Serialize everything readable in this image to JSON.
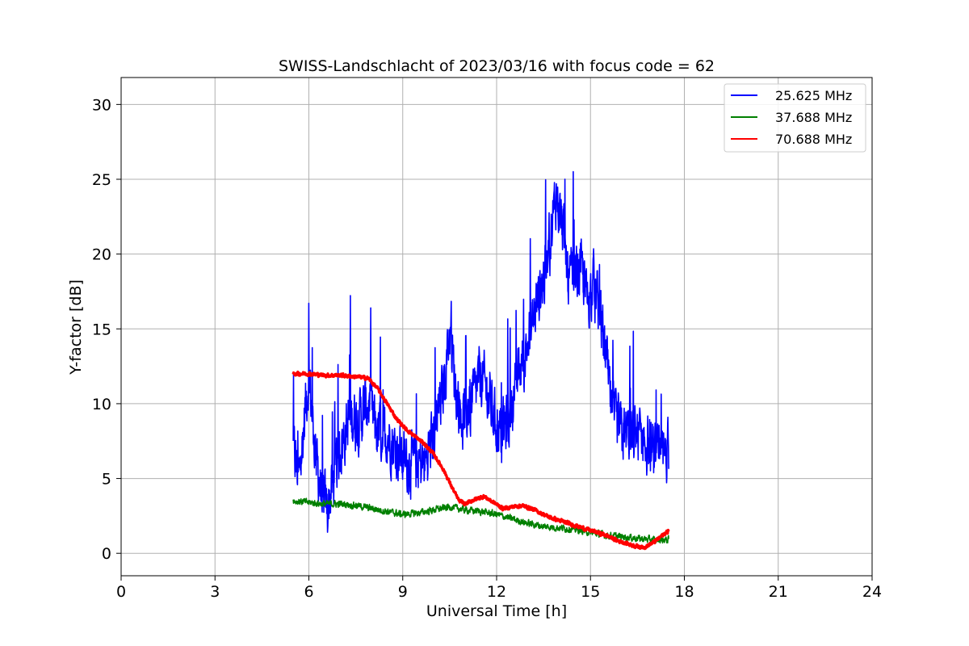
{
  "chart_data": {
    "type": "line",
    "title": "SWISS-Landschlacht of 2023/03/16 with focus code = 62",
    "xlabel": "Universal Time [h]",
    "ylabel": "Y-factor [dB]",
    "xlim": [
      0,
      24
    ],
    "ylim": [
      -1.5,
      31.8
    ],
    "xticks": [
      0,
      3,
      6,
      9,
      12,
      15,
      18,
      21,
      24
    ],
    "yticks": [
      0,
      5,
      10,
      15,
      20,
      25,
      30
    ],
    "grid": true,
    "legend_position": "top-right",
    "series": [
      {
        "name": "25.625 MHz",
        "color": "#0000ff",
        "noise": 3.0,
        "x": [
          5.5,
          5.7,
          5.9,
          6.0,
          6.2,
          6.4,
          6.6,
          6.8,
          7.0,
          7.3,
          7.6,
          7.9,
          8.2,
          8.5,
          8.8,
          9.1,
          9.4,
          9.7,
          10.0,
          10.3,
          10.5,
          10.7,
          10.9,
          11.2,
          11.5,
          11.8,
          12.1,
          12.4,
          12.7,
          13.0,
          13.3,
          13.6,
          13.9,
          14.1,
          14.3,
          14.5,
          14.7,
          14.9,
          15.1,
          15.3,
          15.5,
          15.7,
          16.0,
          16.3,
          16.6,
          16.9,
          17.2,
          17.5
        ],
        "y": [
          7,
          5,
          10,
          12,
          7,
          4,
          3,
          5,
          7,
          9,
          9,
          10,
          8,
          8,
          7,
          6,
          6,
          6,
          8,
          11,
          15,
          11,
          9,
          10,
          12,
          10,
          8,
          9,
          12,
          14,
          17,
          19,
          24,
          22,
          18,
          19,
          19,
          17,
          18,
          16,
          13,
          9,
          8,
          8,
          8,
          7,
          6,
          7
        ]
      },
      {
        "name": "37.688 MHz",
        "color": "#008000",
        "noise": 0.35,
        "x": [
          5.5,
          6.0,
          6.5,
          7.0,
          7.5,
          8.0,
          8.5,
          9.0,
          9.5,
          10.0,
          10.5,
          11.0,
          11.5,
          12.0,
          12.5,
          13.0,
          13.5,
          14.0,
          14.5,
          15.0,
          15.5,
          16.0,
          16.5,
          17.0,
          17.5
        ],
        "y": [
          3.5,
          3.4,
          3.3,
          3.3,
          3.2,
          3.0,
          2.8,
          2.6,
          2.7,
          2.9,
          3.1,
          2.9,
          2.8,
          2.6,
          2.3,
          2.0,
          1.8,
          1.7,
          1.6,
          1.4,
          1.2,
          1.1,
          1.0,
          0.9,
          0.9
        ]
      },
      {
        "name": "70.688 MHz",
        "color": "#ff0000",
        "noise": 0.18,
        "x": [
          5.5,
          6.0,
          6.5,
          7.0,
          7.5,
          7.9,
          8.2,
          8.5,
          8.8,
          9.1,
          9.4,
          9.7,
          10.0,
          10.3,
          10.6,
          10.8,
          11.0,
          11.3,
          11.6,
          11.9,
          12.2,
          12.5,
          12.8,
          13.1,
          13.4,
          13.7,
          14.0,
          14.3,
          14.6,
          14.9,
          15.2,
          15.5,
          15.8,
          16.1,
          16.4,
          16.7,
          17.0,
          17.3,
          17.5
        ],
        "y": [
          12.0,
          12.0,
          11.9,
          11.9,
          11.8,
          11.7,
          11.0,
          10.0,
          9.0,
          8.3,
          7.8,
          7.3,
          6.6,
          5.6,
          4.3,
          3.5,
          3.3,
          3.6,
          3.8,
          3.4,
          3.0,
          3.1,
          3.2,
          3.0,
          2.7,
          2.4,
          2.2,
          2.0,
          1.8,
          1.6,
          1.4,
          1.2,
          0.9,
          0.7,
          0.5,
          0.4,
          0.7,
          1.2,
          1.5
        ]
      }
    ]
  }
}
